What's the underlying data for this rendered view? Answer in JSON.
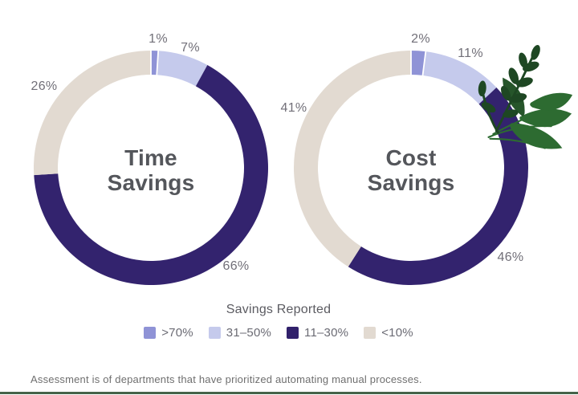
{
  "page": {
    "background": "#ffffff",
    "footnote": "Assessment is of departments that have prioritized automating manual processes.",
    "bottom_bar_color": "#456349"
  },
  "legend": {
    "title": "Savings Reported",
    "items": [
      {
        "label": ">70%",
        "color": "#8f93d6"
      },
      {
        "label": "31–50%",
        "color": "#c5caec"
      },
      {
        "label": "11–30%",
        "color": "#31216b"
      },
      {
        "label": "<10%",
        "color": "#e2dad1"
      }
    ]
  },
  "chart_data": [
    {
      "type": "donut",
      "title": "Time Savings",
      "title_lines": [
        "Time",
        "Savings"
      ],
      "categories": [
        ">70%",
        "31–50%",
        "11–30%",
        "<10%"
      ],
      "values": [
        1,
        7,
        66,
        26
      ],
      "segments": [
        {
          "category": ">70%",
          "value": 1,
          "label": "1%",
          "color": "#8f93d6"
        },
        {
          "category": "31–50%",
          "value": 7,
          "label": "7%",
          "color": "#c5caec"
        },
        {
          "category": "11–30%",
          "value": 66,
          "label": "66%",
          "color": "#33236e"
        },
        {
          "category": "<10%",
          "value": 26,
          "label": "26%",
          "color": "#e2dad1"
        }
      ],
      "start_angle_deg": 0,
      "direction": "clockwise",
      "legend_position": "bottom-center"
    },
    {
      "type": "donut",
      "title": "Cost Savings",
      "title_lines": [
        "Cost",
        "Savings"
      ],
      "categories": [
        ">70%",
        "31–50%",
        "11–30%",
        "<10%"
      ],
      "values": [
        2,
        11,
        46,
        41
      ],
      "segments": [
        {
          "category": ">70%",
          "value": 2,
          "label": "2%",
          "color": "#8f93d6"
        },
        {
          "category": "31–50%",
          "value": 11,
          "label": "11%",
          "color": "#c5caec"
        },
        {
          "category": "11–30%",
          "value": 46,
          "label": "46%",
          "color": "#33236e"
        },
        {
          "category": "<10%",
          "value": 41,
          "label": "41%",
          "color": "#e2dad1"
        }
      ],
      "start_angle_deg": 0,
      "direction": "clockwise",
      "legend_position": "bottom-center"
    }
  ],
  "decoration": {
    "icon": "leaf-sprig-icon",
    "leaf_dark": "#1e4723",
    "leaf_medium": "#2d6b31"
  }
}
